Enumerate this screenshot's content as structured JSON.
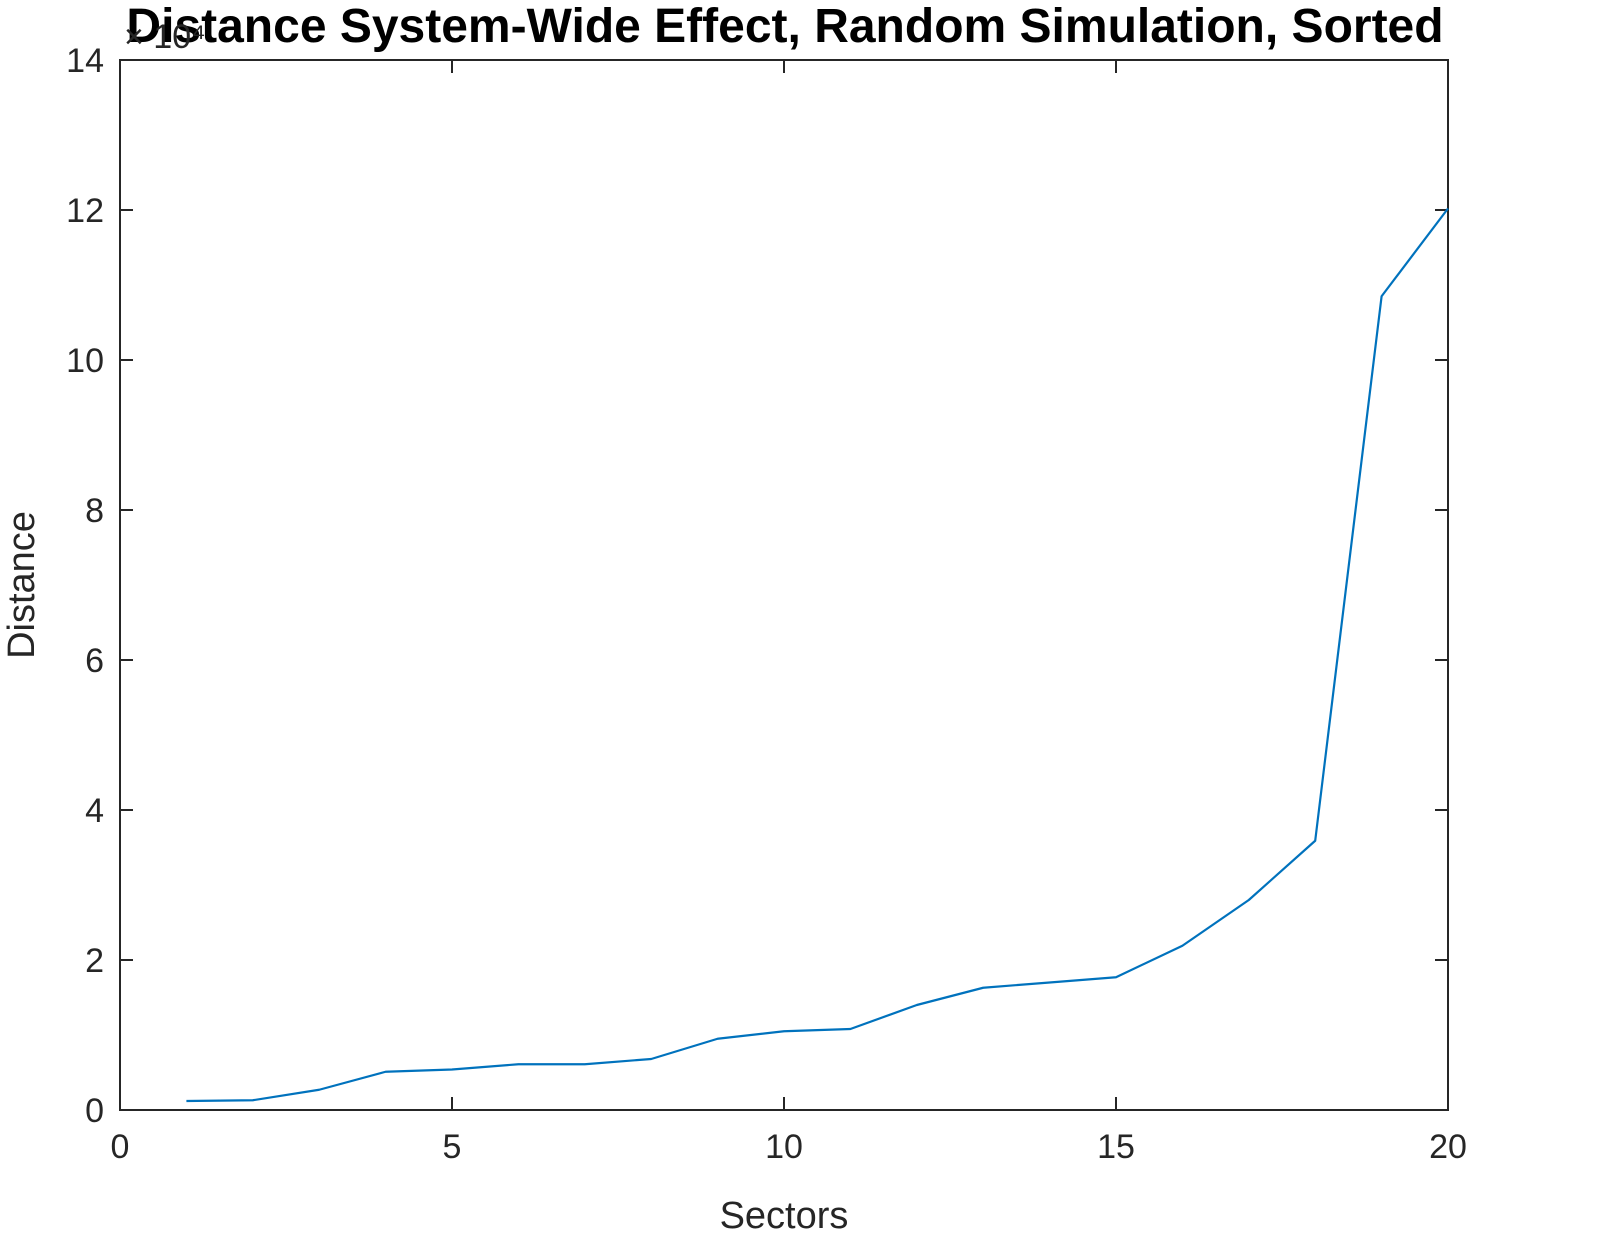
{
  "chart_data": {
    "type": "line",
    "title": "Distance System-Wide Effect, Random Simulation, Sorted",
    "xlabel": "Sectors",
    "ylabel": "Distance",
    "y_exponent_label": "× 10⁴",
    "xlim": [
      0,
      20
    ],
    "ylim": [
      0,
      14
    ],
    "x_ticks": [
      0,
      5,
      10,
      15,
      20
    ],
    "x_tick_labels": [
      "0",
      "5",
      "10",
      "15",
      "20"
    ],
    "y_ticks": [
      0,
      2,
      4,
      6,
      8,
      10,
      12,
      14
    ],
    "y_tick_labels": [
      "0",
      "2",
      "4",
      "6",
      "8",
      "10",
      "12",
      "14"
    ],
    "grid": false,
    "legend": "none",
    "color": "#0072BD",
    "series": [
      {
        "x": [
          1,
          2,
          3,
          4,
          5,
          6,
          7,
          8,
          9,
          10,
          11,
          12,
          13,
          14,
          15,
          16,
          17,
          18,
          19,
          20
        ],
        "values": [
          0.12,
          0.13,
          0.27,
          0.51,
          0.54,
          0.61,
          0.61,
          0.68,
          0.95,
          1.05,
          1.08,
          1.4,
          1.63,
          1.7,
          1.77,
          2.19,
          2.8,
          3.59,
          10.85,
          12.02
        ]
      }
    ]
  }
}
